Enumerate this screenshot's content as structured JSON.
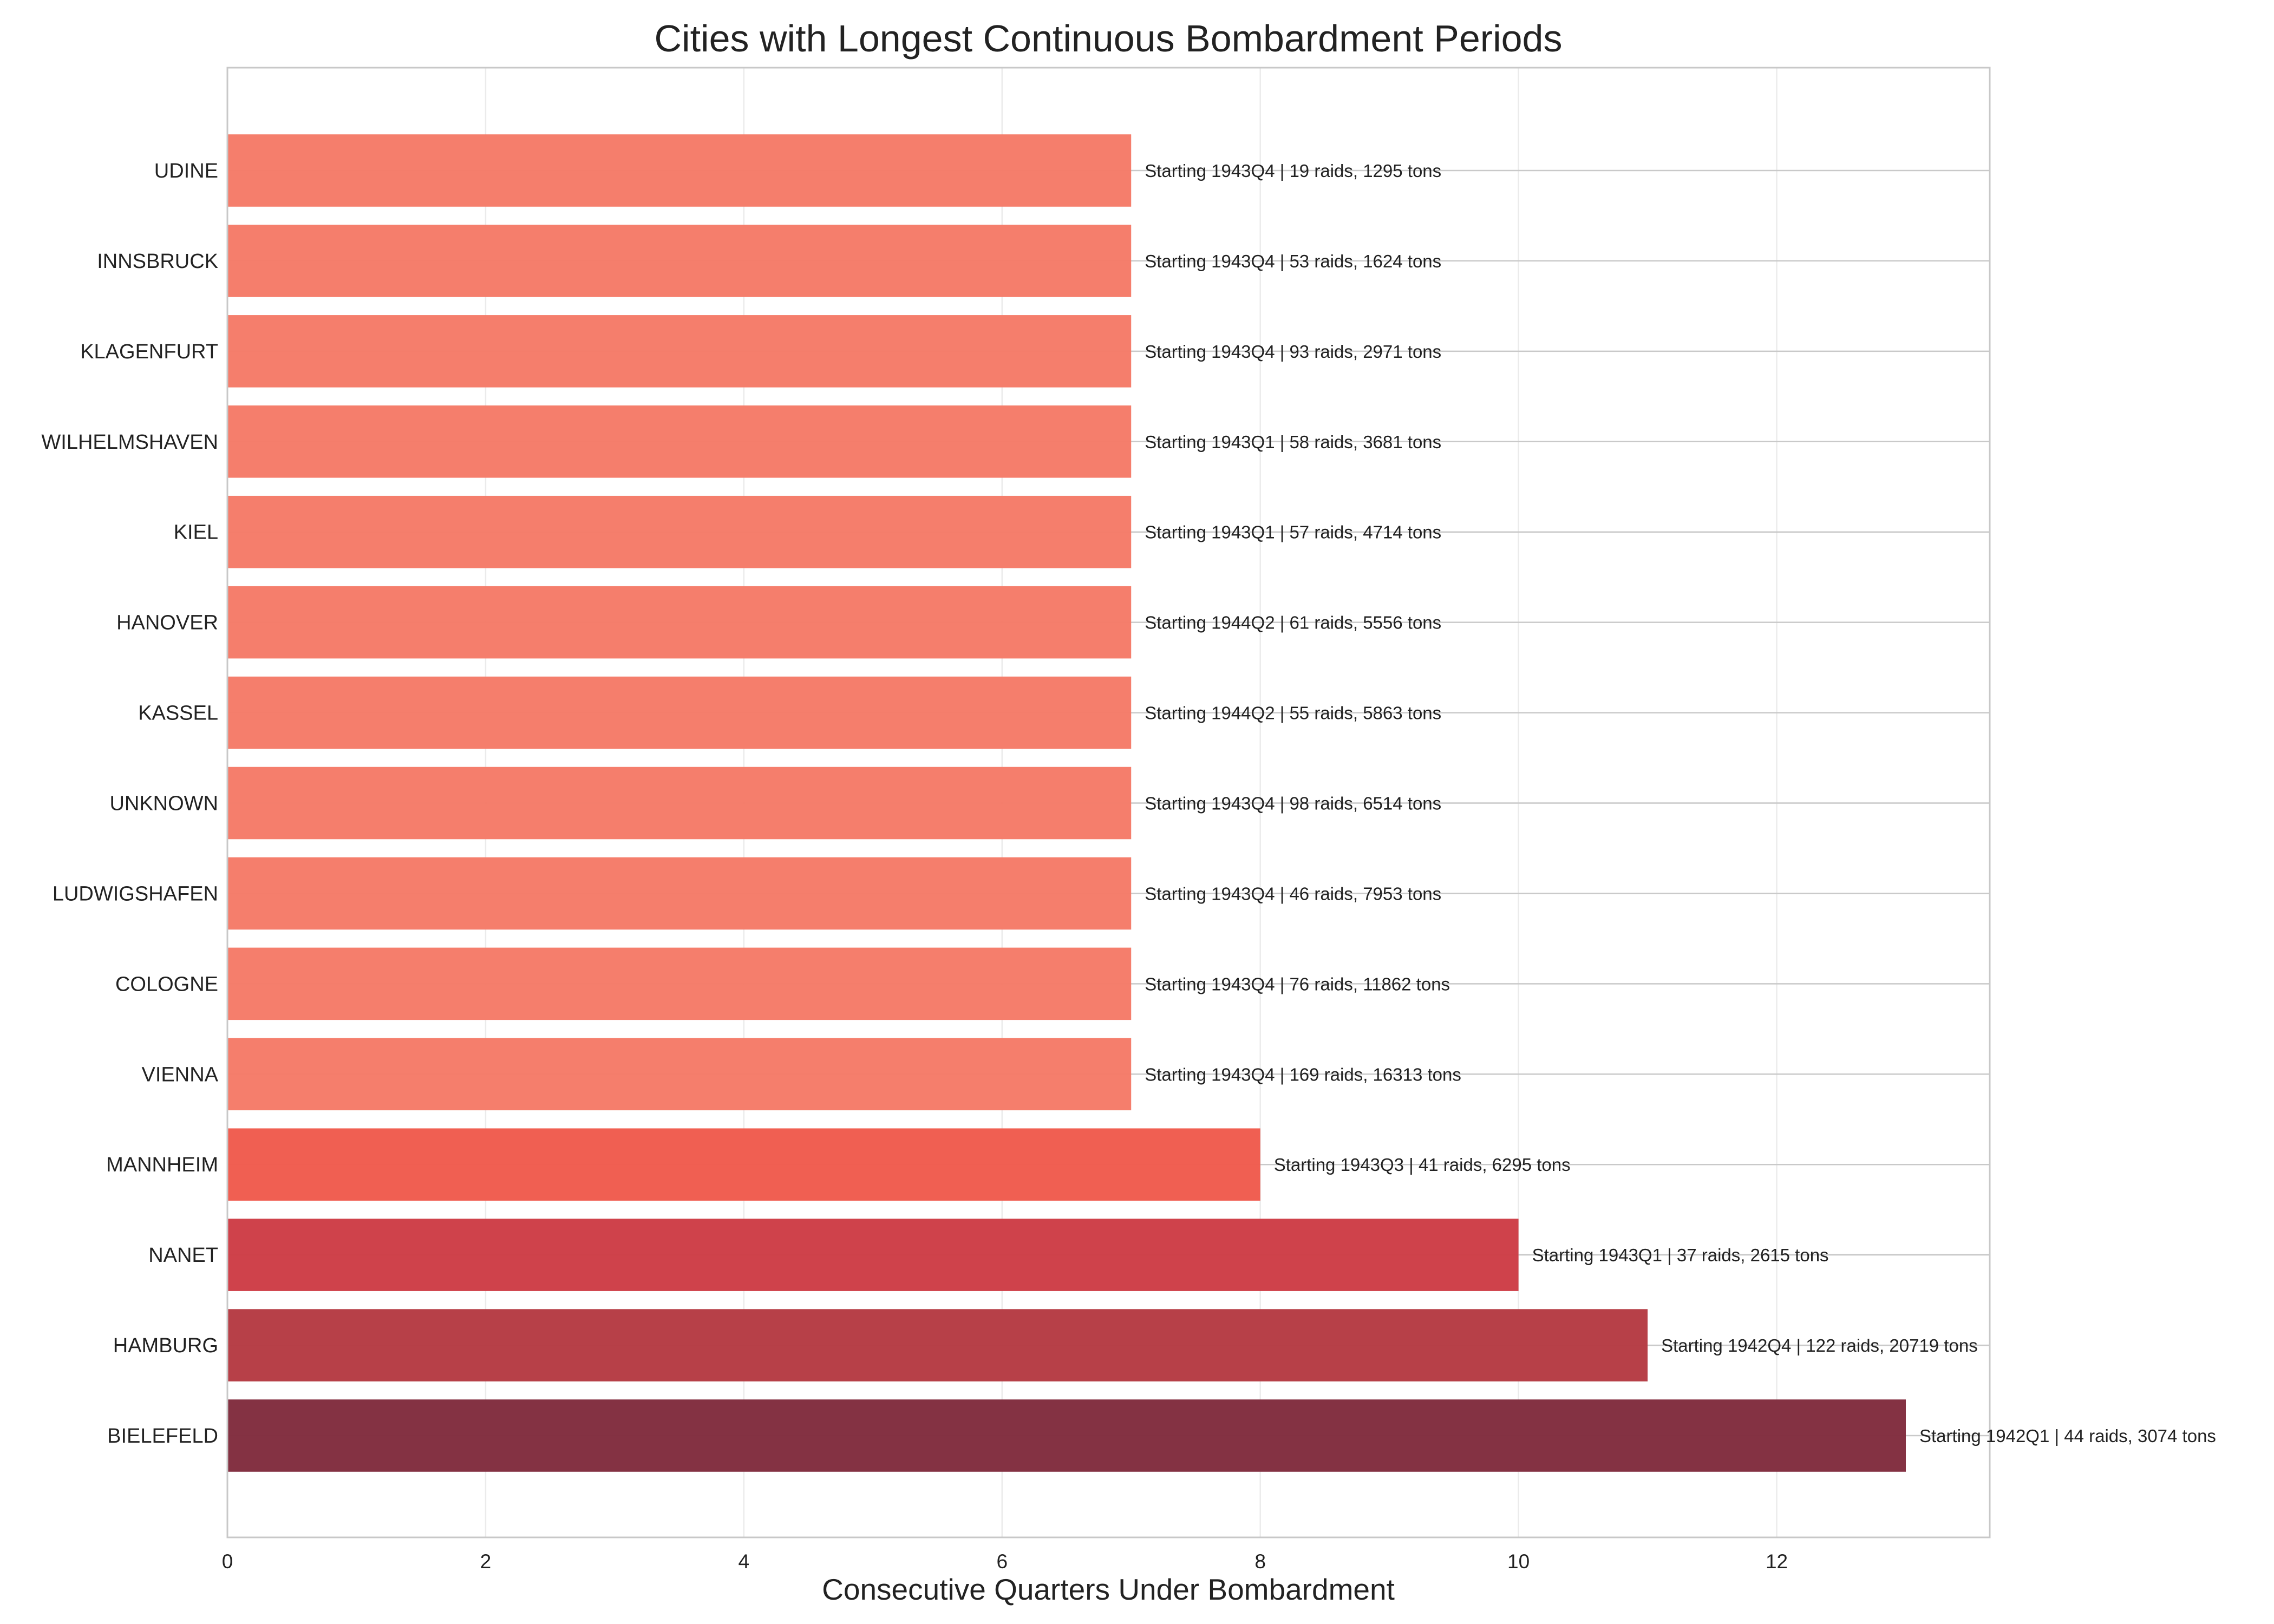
{
  "chart_data": {
    "type": "bar",
    "orientation": "horizontal",
    "title": "Cities with Longest Continuous Bombardment Periods",
    "xlabel": "Consecutive Quarters Under Bombardment",
    "ylabel": "",
    "xlim": [
      0,
      13.65
    ],
    "x_ticks": [
      0,
      2,
      4,
      6,
      8,
      10,
      12
    ],
    "grid": true,
    "categories": [
      "UDINE",
      "INNSBRUCK",
      "KLAGENFURT",
      "WILHELMSHAVEN",
      "KIEL",
      "HANOVER",
      "KASSEL",
      "UNKNOWN",
      "LUDWIGSHAFEN",
      "COLOGNE",
      "VIENNA",
      "MANNHEIM",
      "NANET",
      "HAMBURG",
      "BIELEFELD"
    ],
    "values": [
      7,
      7,
      7,
      7,
      7,
      7,
      7,
      7,
      7,
      7,
      7,
      8,
      10,
      11,
      13
    ],
    "bar_labels": [
      "Starting 1943Q4 | 19 raids, 1295 tons",
      "Starting 1943Q4 | 53 raids, 1624 tons",
      "Starting 1943Q4 | 93 raids, 2971 tons",
      "Starting 1943Q1 | 58 raids, 3681 tons",
      "Starting 1943Q1 | 57 raids, 4714 tons",
      "Starting 1944Q2 | 61 raids, 5556 tons",
      "Starting 1944Q2 | 55 raids, 5863 tons",
      "Starting 1943Q4 | 98 raids, 6514 tons",
      "Starting 1943Q4 | 46 raids, 7953 tons",
      "Starting 1943Q4 | 76 raids, 11862 tons",
      "Starting 1943Q4 | 169 raids, 16313 tons",
      "Starting 1943Q3 | 41 raids, 6295 tons",
      "Starting 1943Q1 | 37 raids, 2615 tons",
      "Starting 1942Q4 | 122 raids, 20719 tons",
      "Starting 1942Q1 | 44 raids, 3074 tons"
    ],
    "colors": [
      "#f57a67",
      "#f57a67",
      "#f57a67",
      "#f57a67",
      "#f57a67",
      "#f57a67",
      "#f57a67",
      "#f57a67",
      "#f57a67",
      "#f57a67",
      "#f57a67",
      "#ef5a4c",
      "#cd3c45",
      "#b53a42",
      "#802b3d"
    ]
  }
}
